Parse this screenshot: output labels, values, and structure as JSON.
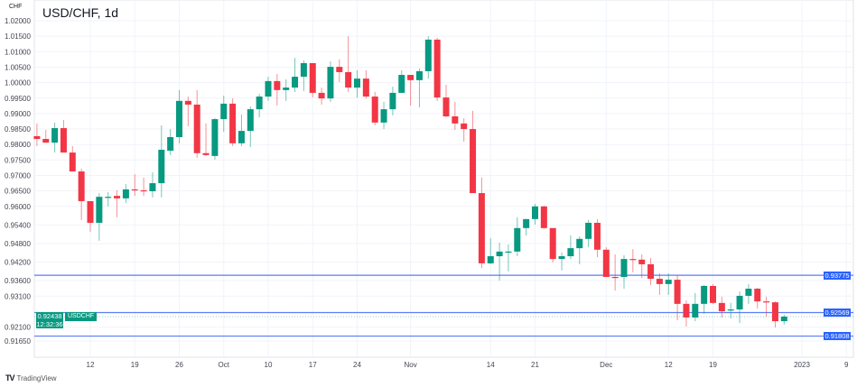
{
  "header": {
    "title": "USD/CHF, 1d",
    "unit": "CHF"
  },
  "footer": {
    "brand": "TradingView"
  },
  "colors": {
    "up": "#089981",
    "down": "#f23645",
    "line": "#5b7cf5",
    "tag_blue": "#2962ff",
    "grid": "#f0f3fa"
  },
  "price_lines": [
    {
      "value": 0.93775,
      "label": "0.93775"
    },
    {
      "value": 0.92569,
      "label": "0.92569"
    },
    {
      "value": 0.91808,
      "label": "0.91808"
    }
  ],
  "current": {
    "value": 0.92438,
    "label": "0.92438",
    "symbol": "USDCHF",
    "countdown": "12:32:36"
  },
  "chart_data": {
    "type": "candlestick",
    "title": "USD/CHF, 1d",
    "ylabel": "CHF",
    "grid": true,
    "y_ticks": [
      {
        "v": 1.02,
        "label": "1.02000"
      },
      {
        "v": 1.015,
        "label": "1.01500"
      },
      {
        "v": 1.01,
        "label": "1.01000"
      },
      {
        "v": 1.005,
        "label": "1.00500"
      },
      {
        "v": 1.0,
        "label": "1.00000"
      },
      {
        "v": 0.995,
        "label": "0.99500"
      },
      {
        "v": 0.99,
        "label": "0.99000"
      },
      {
        "v": 0.985,
        "label": "0.98500"
      },
      {
        "v": 0.98,
        "label": "0.98000"
      },
      {
        "v": 0.975,
        "label": "0.97500"
      },
      {
        "v": 0.97,
        "label": "0.97000"
      },
      {
        "v": 0.965,
        "label": "0.96500"
      },
      {
        "v": 0.96,
        "label": "0.96000"
      },
      {
        "v": 0.954,
        "label": "0.95400"
      },
      {
        "v": 0.948,
        "label": "0.94800"
      },
      {
        "v": 0.942,
        "label": "0.94200"
      },
      {
        "v": 0.936,
        "label": "0.93600"
      },
      {
        "v": 0.931,
        "label": "0.93100"
      },
      {
        "v": 0.921,
        "label": "0.92100"
      },
      {
        "v": 0.9165,
        "label": "0.91650"
      }
    ],
    "x_ticks": [
      {
        "date": "2022-09-12",
        "label": "12"
      },
      {
        "date": "2022-09-19",
        "label": "19"
      },
      {
        "date": "2022-09-26",
        "label": "26"
      },
      {
        "date": "2022-10-03",
        "label": "Oct"
      },
      {
        "date": "2022-10-10",
        "label": "10"
      },
      {
        "date": "2022-10-17",
        "label": "17"
      },
      {
        "date": "2022-10-24",
        "label": "24"
      },
      {
        "date": "2022-11-01",
        "label": "Nov"
      },
      {
        "date": "2022-11-14",
        "label": "14"
      },
      {
        "date": "2022-11-21",
        "label": "21"
      },
      {
        "date": "2022-12-01",
        "label": "Dec"
      },
      {
        "date": "2022-12-12",
        "label": "12"
      },
      {
        "date": "2022-12-19",
        "label": "19"
      },
      {
        "date": "2023-01-02",
        "label": "2023"
      },
      {
        "date": "2023-01-09",
        "label": "9"
      }
    ],
    "first_date": "2022-09-02",
    "ohlc": [
      [
        0.9827,
        0.9868,
        0.9795,
        0.9818
      ],
      [
        0.9818,
        0.9847,
        0.9806,
        0.9806
      ],
      [
        0.9806,
        0.9871,
        0.9774,
        0.9853
      ],
      [
        0.9853,
        0.9879,
        0.9774,
        0.9774
      ],
      [
        0.9774,
        0.9795,
        0.9713,
        0.9713
      ],
      [
        0.9713,
        0.9722,
        0.9556,
        0.9617
      ],
      [
        0.9617,
        0.9617,
        0.9518,
        0.9547
      ],
      [
        0.9547,
        0.9643,
        0.9489,
        0.9631
      ],
      [
        0.9629,
        0.9646,
        0.96,
        0.9631
      ],
      [
        0.9634,
        0.9652,
        0.9565,
        0.9626
      ],
      [
        0.9626,
        0.9672,
        0.9611,
        0.9655
      ],
      [
        0.9655,
        0.9704,
        0.9634,
        0.9652
      ],
      [
        0.9652,
        0.9693,
        0.9634,
        0.9649
      ],
      [
        0.9649,
        0.971,
        0.9629,
        0.9675
      ],
      [
        0.9675,
        0.9862,
        0.9629,
        0.9783
      ],
      [
        0.978,
        0.985,
        0.9766,
        0.9824
      ],
      [
        0.9824,
        0.9976,
        0.9804,
        0.9941
      ],
      [
        0.9941,
        0.9955,
        0.9859,
        0.9929
      ],
      [
        0.9929,
        0.9976,
        0.9757,
        0.9772
      ],
      [
        0.9772,
        0.9868,
        0.9763,
        0.9766
      ],
      [
        0.9763,
        0.9885,
        0.9751,
        0.9882
      ],
      [
        0.9882,
        0.9958,
        0.9841,
        0.9932
      ],
      [
        0.9932,
        0.9949,
        0.9795,
        0.9804
      ],
      [
        0.9804,
        0.9897,
        0.9795,
        0.9844
      ],
      [
        0.9844,
        0.9923,
        0.9792,
        0.9914
      ],
      [
        0.9914,
        0.9964,
        0.9888,
        0.9955
      ],
      [
        0.9955,
        1.0019,
        0.9941,
        1.0005
      ],
      [
        1.0005,
        1.0028,
        0.9926,
        0.9976
      ],
      [
        0.9976,
        1.0011,
        0.9941,
        0.9984
      ],
      [
        0.9984,
        1.008,
        0.997,
        1.0019
      ],
      [
        1.0019,
        1.0072,
        0.9973,
        1.0063
      ],
      [
        1.0063,
        1.0063,
        0.9952,
        0.9967
      ],
      [
        0.9967,
        0.9984,
        0.9929,
        0.9949
      ],
      [
        0.9949,
        1.0069,
        0.9938,
        1.0051
      ],
      [
        1.0051,
        1.0075,
        1.0002,
        1.0034
      ],
      [
        1.0034,
        1.015,
        0.997,
        0.9984
      ],
      [
        0.9984,
        1.004,
        0.9952,
        1.0013
      ],
      [
        1.0013,
        1.004,
        0.9949,
        0.9955
      ],
      [
        0.9955,
        0.997,
        0.9862,
        0.9871
      ],
      [
        0.9871,
        0.9938,
        0.985,
        0.9914
      ],
      [
        0.9914,
        0.9987,
        0.9894,
        0.9967
      ],
      [
        0.9967,
        1.004,
        0.9967,
        1.0025
      ],
      [
        1.0025,
        1.0025,
        0.9926,
        1.0008
      ],
      [
        1.0008,
        1.0046,
        0.992,
        1.0037
      ],
      [
        1.0037,
        1.015,
        1.0013,
        1.0139
      ],
      [
        1.0139,
        1.0145,
        0.9941,
        0.9952
      ],
      [
        0.9952,
        0.9993,
        0.9888,
        0.9891
      ],
      [
        0.9891,
        0.9938,
        0.9847,
        0.9868
      ],
      [
        0.9868,
        0.9885,
        0.9809,
        0.985
      ],
      [
        0.985,
        0.9909,
        0.9643,
        0.9643
      ],
      [
        0.9643,
        0.9693,
        0.9401,
        0.9416
      ],
      [
        0.9416,
        0.9497,
        0.9413,
        0.9439
      ],
      [
        0.9439,
        0.9483,
        0.936,
        0.9454
      ],
      [
        0.9451,
        0.9477,
        0.939,
        0.9454
      ],
      [
        0.9454,
        0.9565,
        0.9439,
        0.953
      ],
      [
        0.953,
        0.9559,
        0.9506,
        0.9559
      ],
      [
        0.9559,
        0.9608,
        0.9541,
        0.96
      ],
      [
        0.96,
        0.9602,
        0.9527,
        0.953
      ],
      [
        0.953,
        0.953,
        0.9419,
        0.943
      ],
      [
        0.943,
        0.9451,
        0.9393,
        0.9439
      ],
      [
        0.9439,
        0.9506,
        0.943,
        0.9465
      ],
      [
        0.9465,
        0.9503,
        0.9413,
        0.9495
      ],
      [
        0.9495,
        0.9556,
        0.9468,
        0.9547
      ],
      [
        0.9547,
        0.9559,
        0.9436,
        0.946
      ],
      [
        0.946,
        0.9468,
        0.9372,
        0.9372
      ],
      [
        0.9372,
        0.9445,
        0.9328,
        0.9369
      ],
      [
        0.9372,
        0.9442,
        0.9334,
        0.943
      ],
      [
        0.943,
        0.9462,
        0.9387,
        0.9428
      ],
      [
        0.9428,
        0.9445,
        0.9369,
        0.9413
      ],
      [
        0.9413,
        0.9433,
        0.9346,
        0.9366
      ],
      [
        0.9366,
        0.9384,
        0.9314,
        0.9349
      ],
      [
        0.9349,
        0.9384,
        0.9314,
        0.9363
      ],
      [
        0.9363,
        0.9378,
        0.9232,
        0.9285
      ],
      [
        0.9285,
        0.9296,
        0.9212,
        0.9241
      ],
      [
        0.9241,
        0.932,
        0.9229,
        0.9285
      ],
      [
        0.9285,
        0.9346,
        0.9253,
        0.9343
      ],
      [
        0.9343,
        0.9349,
        0.9285,
        0.9288
      ],
      [
        0.9288,
        0.9308,
        0.9241,
        0.9261
      ],
      [
        0.9264,
        0.9288,
        0.9238,
        0.9267
      ],
      [
        0.9267,
        0.9325,
        0.9223,
        0.9311
      ],
      [
        0.9311,
        0.9349,
        0.9285,
        0.9334
      ],
      [
        0.9334,
        0.9337,
        0.927,
        0.9293
      ],
      [
        0.9293,
        0.9308,
        0.9244,
        0.929
      ],
      [
        0.929,
        0.9293,
        0.9209,
        0.9229
      ],
      [
        0.9229,
        0.925,
        0.9218,
        0.92438
      ]
    ]
  }
}
